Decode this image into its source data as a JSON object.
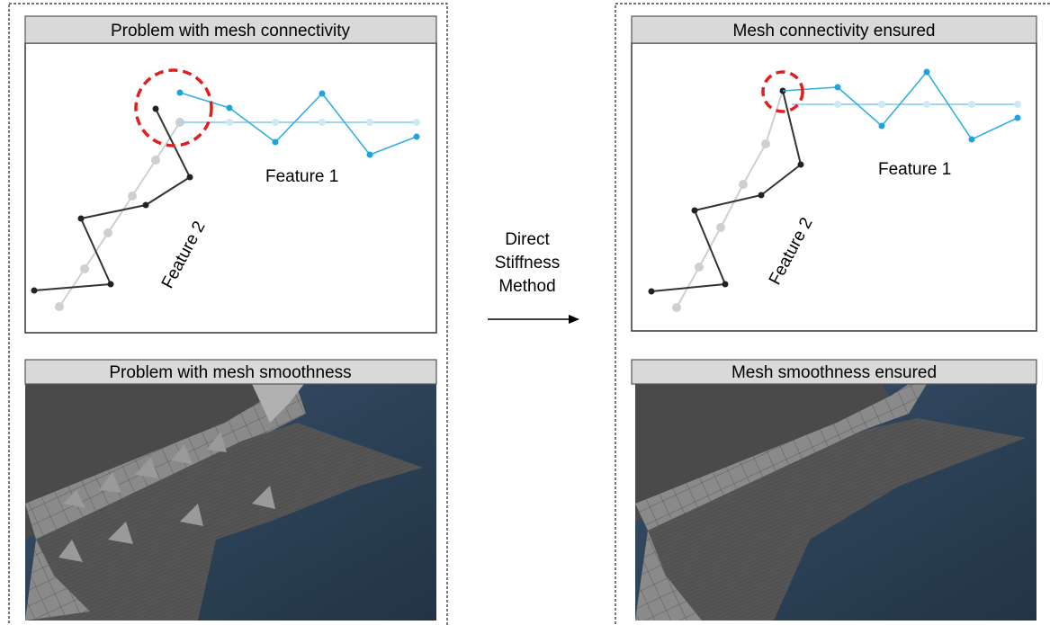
{
  "left": {
    "connectivity_title": "Problem with mesh connectivity",
    "feature_1": "Feature 1",
    "feature_2": "Feature 2",
    "smoothness_title": "Problem with mesh smoothness"
  },
  "middle": {
    "arrow_label": [
      "Direct",
      "Stiffness",
      "Method"
    ]
  },
  "right": {
    "connectivity_title": "Mesh connectivity ensured",
    "feature_1": "Feature 1",
    "feature_2": "Feature 2",
    "smoothness_title": "Mesh smoothness ensured"
  }
}
